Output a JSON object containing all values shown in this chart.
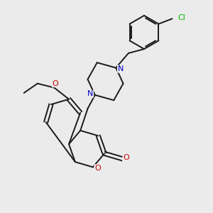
{
  "bg_color": "#ebebeb",
  "bond_color": "#1a1a1a",
  "n_color": "#0000cc",
  "o_color": "#cc0000",
  "cl_color": "#00bb00",
  "figsize": [
    3.0,
    3.0
  ],
  "dpi": 100,
  "lw": 1.4,
  "xlim": [
    0,
    10
  ],
  "ylim": [
    0,
    10
  ]
}
